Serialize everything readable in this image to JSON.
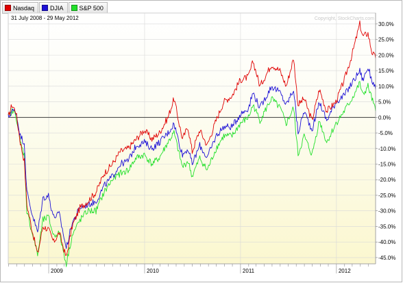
{
  "chart_data": {
    "type": "line",
    "subtitle": "31 July 2008 - 29 May 2012",
    "copyright": "Copyright, StockCharts.com",
    "x_start": "2008-07-31",
    "x_end": "2012-05-29",
    "year_labels": [
      {
        "label": "2009",
        "date": "2009-01-01"
      },
      {
        "label": "2010",
        "date": "2010-01-01"
      },
      {
        "label": "2011",
        "date": "2011-01-01"
      },
      {
        "label": "2012",
        "date": "2012-01-01"
      }
    ],
    "ylim": [
      -47,
      33.5
    ],
    "yticks": [
      {
        "value": 30,
        "label": "30.0%"
      },
      {
        "value": 25,
        "label": "25.0%"
      },
      {
        "value": 20,
        "label": "20.0%"
      },
      {
        "value": 15,
        "label": "15.0%"
      },
      {
        "value": 10,
        "label": "10.0%"
      },
      {
        "value": 5,
        "label": "5.0%"
      },
      {
        "value": 0,
        "label": "0.0%"
      },
      {
        "value": -5,
        "label": "-5.0%"
      },
      {
        "value": -10,
        "label": "-10.0%"
      },
      {
        "value": -15,
        "label": "-15.0%"
      },
      {
        "value": -20,
        "label": "-20.0%"
      },
      {
        "value": -25,
        "label": "-25.0%"
      },
      {
        "value": -30,
        "label": "-30.0%"
      },
      {
        "value": -35,
        "label": "-35.0%"
      },
      {
        "value": -40,
        "label": "-40.0%"
      },
      {
        "value": -45,
        "label": "-45.0%"
      }
    ],
    "grid": true,
    "legend_position": "top-left",
    "series": [
      {
        "name": "Nasdaq",
        "color": "#e00000",
        "points": [
          [
            "2008-07-31",
            0
          ],
          [
            "2008-08-14",
            4
          ],
          [
            "2008-08-29",
            2
          ],
          [
            "2008-09-15",
            -8
          ],
          [
            "2008-09-30",
            -14
          ],
          [
            "2008-10-10",
            -28
          ],
          [
            "2008-10-27",
            -35
          ],
          [
            "2008-11-20",
            -44
          ],
          [
            "2008-12-10",
            -35
          ],
          [
            "2008-12-31",
            -36
          ],
          [
            "2009-01-20",
            -40
          ],
          [
            "2009-02-10",
            -37
          ],
          [
            "2009-03-09",
            -45
          ],
          [
            "2009-03-31",
            -35
          ],
          [
            "2009-04-30",
            -29
          ],
          [
            "2009-05-29",
            -27
          ],
          [
            "2009-06-30",
            -24
          ],
          [
            "2009-07-31",
            -18
          ],
          [
            "2009-08-31",
            -15
          ],
          [
            "2009-09-30",
            -11
          ],
          [
            "2009-10-30",
            -10
          ],
          [
            "2009-11-30",
            -7
          ],
          [
            "2009-12-31",
            -4
          ],
          [
            "2010-01-29",
            -7
          ],
          [
            "2010-02-26",
            -5
          ],
          [
            "2010-03-31",
            0
          ],
          [
            "2010-04-23",
            6
          ],
          [
            "2010-05-25",
            -7
          ],
          [
            "2010-06-15",
            -3
          ],
          [
            "2010-07-01",
            -11
          ],
          [
            "2010-07-30",
            -4
          ],
          [
            "2010-08-27",
            -9
          ],
          [
            "2010-09-30",
            -1
          ],
          [
            "2010-10-29",
            5
          ],
          [
            "2010-11-30",
            7
          ],
          [
            "2010-12-31",
            12
          ],
          [
            "2011-01-31",
            13
          ],
          [
            "2011-02-18",
            18
          ],
          [
            "2011-03-16",
            10
          ],
          [
            "2011-04-29",
            17
          ],
          [
            "2011-05-31",
            15
          ],
          [
            "2011-06-24",
            10
          ],
          [
            "2011-07-22",
            19
          ],
          [
            "2011-08-08",
            4
          ],
          [
            "2011-08-31",
            6
          ],
          [
            "2011-09-30",
            -1
          ],
          [
            "2011-10-28",
            9
          ],
          [
            "2011-11-25",
            2
          ],
          [
            "2011-12-30",
            5
          ],
          [
            "2012-01-31",
            12
          ],
          [
            "2012-02-29",
            20
          ],
          [
            "2012-03-30",
            30
          ],
          [
            "2012-04-10",
            26
          ],
          [
            "2012-04-30",
            27
          ],
          [
            "2012-05-15",
            21
          ],
          [
            "2012-05-29",
            19
          ]
        ]
      },
      {
        "name": "DJIA",
        "color": "#1c10d6",
        "points": [
          [
            "2008-07-31",
            0
          ],
          [
            "2008-08-14",
            2
          ],
          [
            "2008-08-29",
            2
          ],
          [
            "2008-09-15",
            -6
          ],
          [
            "2008-09-30",
            -8
          ],
          [
            "2008-10-10",
            -24
          ],
          [
            "2008-10-27",
            -30
          ],
          [
            "2008-11-20",
            -37
          ],
          [
            "2008-12-10",
            -26
          ],
          [
            "2008-12-31",
            -25
          ],
          [
            "2009-01-20",
            -32
          ],
          [
            "2009-02-10",
            -31
          ],
          [
            "2009-03-09",
            -42
          ],
          [
            "2009-03-31",
            -34
          ],
          [
            "2009-04-30",
            -29
          ],
          [
            "2009-05-29",
            -28
          ],
          [
            "2009-06-30",
            -27
          ],
          [
            "2009-07-31",
            -22
          ],
          [
            "2009-08-31",
            -19
          ],
          [
            "2009-09-30",
            -15
          ],
          [
            "2009-10-30",
            -14
          ],
          [
            "2009-11-30",
            -9
          ],
          [
            "2009-12-31",
            -8
          ],
          [
            "2010-01-29",
            -10
          ],
          [
            "2010-02-26",
            -8
          ],
          [
            "2010-03-31",
            -5
          ],
          [
            "2010-04-23",
            -2
          ],
          [
            "2010-05-25",
            -12
          ],
          [
            "2010-06-15",
            -10
          ],
          [
            "2010-07-01",
            -15
          ],
          [
            "2010-07-30",
            -9
          ],
          [
            "2010-08-27",
            -13
          ],
          [
            "2010-09-30",
            -6
          ],
          [
            "2010-10-29",
            -3
          ],
          [
            "2010-11-30",
            -3
          ],
          [
            "2010-12-31",
            1
          ],
          [
            "2011-01-31",
            3
          ],
          [
            "2011-02-18",
            8
          ],
          [
            "2011-03-16",
            3
          ],
          [
            "2011-04-29",
            10
          ],
          [
            "2011-05-31",
            8
          ],
          [
            "2011-06-24",
            4
          ],
          [
            "2011-07-22",
            9
          ],
          [
            "2011-08-08",
            -5
          ],
          [
            "2011-08-31",
            2
          ],
          [
            "2011-09-30",
            -4
          ],
          [
            "2011-10-28",
            5
          ],
          [
            "2011-11-25",
            -1
          ],
          [
            "2011-12-30",
            5
          ],
          [
            "2012-01-31",
            7
          ],
          [
            "2012-02-29",
            11
          ],
          [
            "2012-03-30",
            15
          ],
          [
            "2012-04-10",
            12
          ],
          [
            "2012-04-30",
            16
          ],
          [
            "2012-05-15",
            12
          ],
          [
            "2012-05-29",
            9
          ]
        ]
      },
      {
        "name": "S&P 500",
        "color": "#22e02a",
        "points": [
          [
            "2008-07-31",
            0
          ],
          [
            "2008-08-14",
            2
          ],
          [
            "2008-08-29",
            1
          ],
          [
            "2008-09-15",
            -8
          ],
          [
            "2008-09-30",
            -12
          ],
          [
            "2008-10-10",
            -30
          ],
          [
            "2008-10-27",
            -36
          ],
          [
            "2008-11-20",
            -44
          ],
          [
            "2008-12-10",
            -33
          ],
          [
            "2008-12-31",
            -32
          ],
          [
            "2009-01-20",
            -38
          ],
          [
            "2009-02-10",
            -37
          ],
          [
            "2009-03-09",
            -47
          ],
          [
            "2009-03-31",
            -38
          ],
          [
            "2009-04-30",
            -33
          ],
          [
            "2009-05-29",
            -30
          ],
          [
            "2009-06-30",
            -30
          ],
          [
            "2009-07-31",
            -24
          ],
          [
            "2009-08-31",
            -20
          ],
          [
            "2009-09-30",
            -18
          ],
          [
            "2009-10-30",
            -17
          ],
          [
            "2009-11-30",
            -13
          ],
          [
            "2009-12-31",
            -12
          ],
          [
            "2010-01-29",
            -15
          ],
          [
            "2010-02-26",
            -13
          ],
          [
            "2010-03-31",
            -8
          ],
          [
            "2010-04-23",
            -5
          ],
          [
            "2010-05-25",
            -16
          ],
          [
            "2010-06-15",
            -14
          ],
          [
            "2010-07-01",
            -19
          ],
          [
            "2010-07-30",
            -13
          ],
          [
            "2010-08-27",
            -17
          ],
          [
            "2010-09-30",
            -10
          ],
          [
            "2010-10-29",
            -6
          ],
          [
            "2010-11-30",
            -6
          ],
          [
            "2010-12-31",
            -2
          ],
          [
            "2011-01-31",
            0
          ],
          [
            "2011-02-18",
            4
          ],
          [
            "2011-03-16",
            -1
          ],
          [
            "2011-04-29",
            6
          ],
          [
            "2011-05-31",
            3
          ],
          [
            "2011-06-24",
            -2
          ],
          [
            "2011-07-22",
            3
          ],
          [
            "2011-08-08",
            -12
          ],
          [
            "2011-08-31",
            -6
          ],
          [
            "2011-09-30",
            -12
          ],
          [
            "2011-10-28",
            -1
          ],
          [
            "2011-11-25",
            -8
          ],
          [
            "2011-12-30",
            -2
          ],
          [
            "2012-01-31",
            2
          ],
          [
            "2012-02-29",
            6
          ],
          [
            "2012-03-30",
            11
          ],
          [
            "2012-04-10",
            7
          ],
          [
            "2012-04-30",
            10
          ],
          [
            "2012-05-15",
            6
          ],
          [
            "2012-05-29",
            2
          ]
        ]
      }
    ]
  }
}
